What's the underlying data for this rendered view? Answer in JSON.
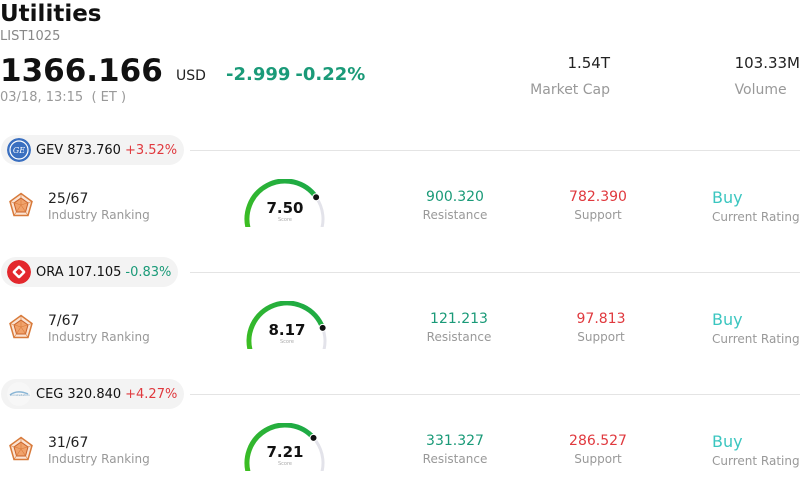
{
  "header": {
    "title": "Utilities",
    "code": "LIST1025",
    "price": "1366.166",
    "currency": "USD",
    "change": "-2.999",
    "change_pct": "-0.22%",
    "time": "03/18, 13:15  ( ET )"
  },
  "stats": {
    "market_cap_value": "1.54T",
    "market_cap_label": "Market Cap",
    "volume_value": "103.33M",
    "volume_label": "Volume"
  },
  "stocks": [
    {
      "symbol": "GEV",
      "price": "873.760",
      "change": "+3.52%",
      "direction": "up",
      "logo": "ge-logo-icon",
      "rank": "25/67",
      "rank_label": "Industry Ranking",
      "score": "7.50",
      "score_fraction": 0.75,
      "score_label": "Score",
      "resistance": "900.320",
      "resistance_label": "Resistance",
      "support": "782.390",
      "support_label": "Support",
      "rating": "Buy",
      "rating_label": "Current Rating"
    },
    {
      "symbol": "ORA",
      "price": "107.105",
      "change": "-0.83%",
      "direction": "down",
      "logo": "ormat-logo-icon",
      "rank": "7/67",
      "rank_label": "Industry Ranking",
      "score": "8.17",
      "score_fraction": 0.817,
      "score_label": "Score",
      "resistance": "121.213",
      "resistance_label": "Resistance",
      "support": "97.813",
      "support_label": "Support",
      "rating": "Buy",
      "rating_label": "Current Rating"
    },
    {
      "symbol": "CEG",
      "price": "320.840",
      "change": "+4.27%",
      "direction": "up",
      "logo": "constellation-logo-icon",
      "rank": "31/67",
      "rank_label": "Industry Ranking",
      "score": "7.21",
      "score_fraction": 0.721,
      "score_label": "Score",
      "resistance": "331.327",
      "resistance_label": "Resistance",
      "support": "286.527",
      "support_label": "Support",
      "rating": "Buy",
      "rating_label": "Current Rating"
    }
  ],
  "colors": {
    "down": "#1a9a78",
    "up": "#e0393e",
    "rating": "#3bc6c0",
    "gauge_start": "#3fbf1f",
    "gauge_end": "#1aa84a",
    "gauge_track": "#e3e3ea"
  }
}
